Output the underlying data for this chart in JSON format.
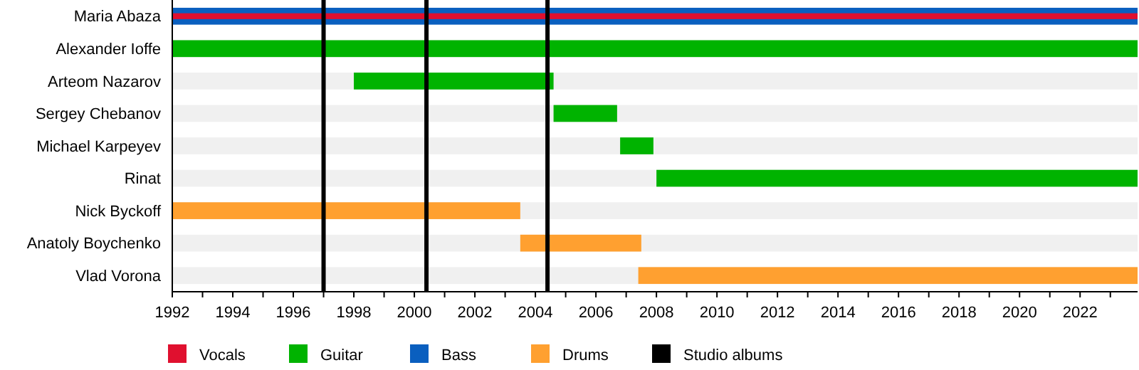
{
  "chart_data": {
    "type": "bar",
    "orientation": "horizontal",
    "legend": "bottom",
    "categories": [
      "Maria Abaza",
      "Alexander Ioffe",
      "Arteom Nazarov",
      "Sergey Chebanov",
      "Michael Karpeyev",
      "Rinat",
      "Nick Byckoff",
      "Anatoly Boychenko",
      "Vlad Vorona"
    ],
    "series": [
      {
        "name": "Vocals",
        "color": "#e0102f",
        "values": [
          31.9,
          null,
          null,
          null,
          null,
          null,
          null,
          null,
          null
        ],
        "base": [
          1992,
          null,
          null,
          null,
          null,
          null,
          null,
          null,
          null
        ]
      },
      {
        "name": "Guitar",
        "color": "#00b300",
        "values": [
          null,
          31.9,
          6.6,
          2.1,
          1.1,
          15.9,
          null,
          null,
          null
        ],
        "base": [
          null,
          1992,
          1998,
          2004.6,
          2006.8,
          2008,
          null,
          null,
          null
        ]
      },
      {
        "name": "Bass",
        "color": "#0a5fbf",
        "values": [
          31.9,
          null,
          null,
          null,
          null,
          null,
          null,
          null,
          null
        ],
        "base": [
          1992,
          null,
          null,
          null,
          null,
          null,
          null,
          null,
          null
        ]
      },
      {
        "name": "Drums",
        "color": "#ffa030",
        "values": [
          null,
          null,
          null,
          null,
          null,
          null,
          11.5,
          4.0,
          16.5
        ],
        "base": [
          null,
          null,
          null,
          null,
          null,
          null,
          1992,
          2003.5,
          2007.4
        ]
      }
    ],
    "ref_lines": [
      {
        "axis": "x",
        "value": 1997.0,
        "label": "Studio albums",
        "color": "#000000"
      },
      {
        "axis": "x",
        "value": 2000.4,
        "color": "#000000"
      },
      {
        "axis": "x",
        "value": 2004.4,
        "color": "#000000"
      }
    ],
    "xlim": [
      1992,
      2023.9
    ],
    "xticks": [
      1992,
      {
        "value": 1993,
        "label": null
      },
      1994,
      {
        "value": 1995,
        "label": null
      },
      1996,
      {
        "value": 1997,
        "label": null
      },
      1998,
      {
        "value": 1999,
        "label": null
      },
      2000,
      {
        "value": 2001,
        "label": null
      },
      2002,
      {
        "value": 2003,
        "label": null
      },
      2004,
      {
        "value": 2005,
        "label": null
      },
      2006,
      {
        "value": 2007,
        "label": null
      },
      2008,
      {
        "value": 2009,
        "label": null
      },
      2010,
      {
        "value": 2011,
        "label": null
      },
      2012,
      {
        "value": 2013,
        "label": null
      },
      2014,
      {
        "value": 2015,
        "label": null
      },
      2016,
      {
        "value": 2017,
        "label": null
      },
      2018,
      {
        "value": 2019,
        "label": null
      },
      2020,
      {
        "value": 2021,
        "label": null
      },
      2022,
      {
        "value": 2023,
        "label": null
      }
    ]
  }
}
